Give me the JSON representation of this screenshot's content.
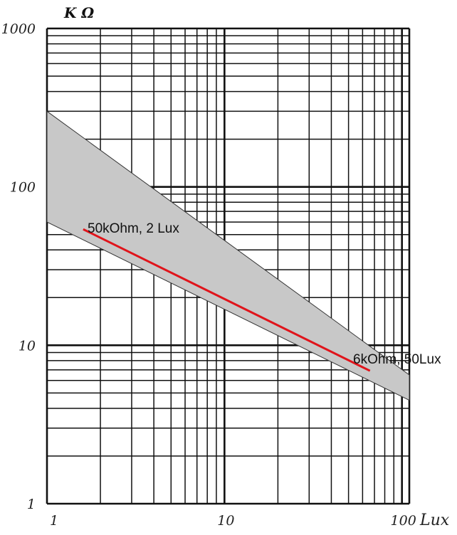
{
  "chart_data": {
    "type": "area",
    "x_scale": "log",
    "y_scale": "log",
    "xlim": [
      1,
      110
    ],
    "ylim": [
      1,
      1000
    ],
    "x_ticks": [
      "1",
      "10",
      "100"
    ],
    "y_ticks": [
      "1000",
      "100",
      "10",
      "1"
    ],
    "xlabel": "Lux",
    "ylabel": "K Ω",
    "grid": true,
    "colors": {
      "band": "#c8c8c8",
      "line": "#e0141b",
      "grid": "#111111"
    },
    "band": {
      "x": [
        1,
        110
      ],
      "upper": [
        300,
        6.5
      ],
      "lower": [
        60,
        4.5
      ]
    },
    "series": [
      {
        "x": [
          1.6,
          66
        ],
        "y": [
          54,
          6.9
        ]
      }
    ],
    "annotations": [
      {
        "text": "50kOhm, 2 Lux",
        "x": 1.6,
        "y": 62
      },
      {
        "text": "6kOhm, 50Lux",
        "x": 42,
        "y": 7.9
      }
    ]
  }
}
